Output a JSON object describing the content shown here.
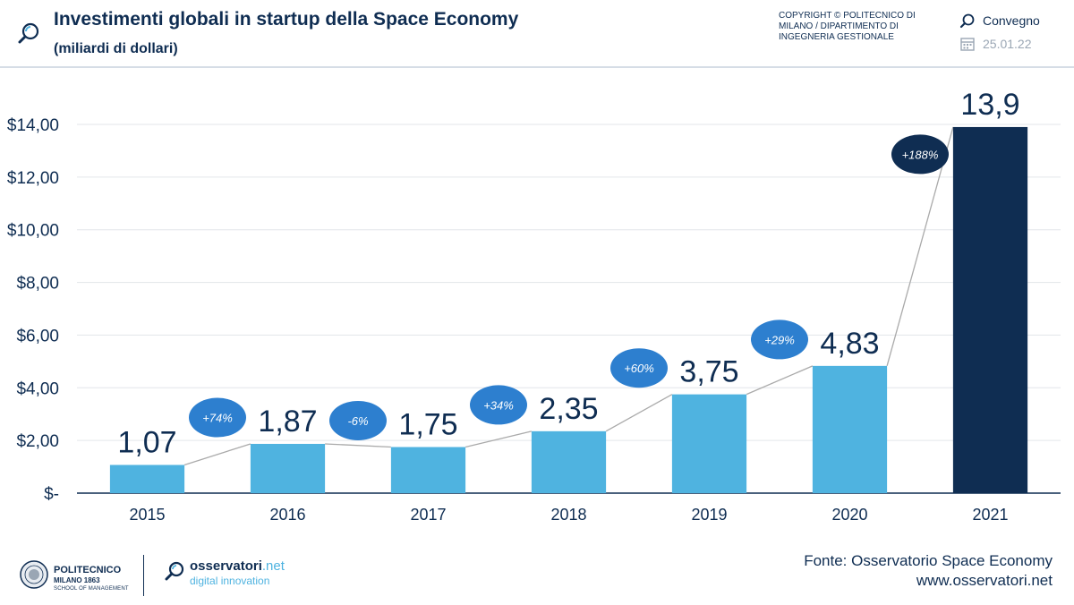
{
  "header": {
    "title": "Investimenti globali in startup della Space Economy",
    "subtitle": "(miliardi di dollari)",
    "copyright": "COPYRIGHT © POLITECNICO DI MILANO / DIPARTIMENTO DI INGEGNERIA GESTIONALE",
    "event_label": "Convegno",
    "date_label": "25.01.22",
    "icons": {
      "title": "magnifier-icon",
      "event": "magnifier-icon",
      "date": "calendar-icon"
    }
  },
  "chart_data": {
    "type": "bar",
    "title": "Investimenti globali in startup della Space Economy",
    "subtitle": "(miliardi di dollari)",
    "categories": [
      "2015",
      "2016",
      "2017",
      "2018",
      "2019",
      "2020",
      "2021"
    ],
    "values": [
      1.07,
      1.87,
      1.75,
      2.35,
      3.75,
      4.83,
      13.9
    ],
    "value_labels": [
      "1,07",
      "1,87",
      "1,75",
      "2,35",
      "3,75",
      "4,83",
      "13,9"
    ],
    "growth_labels": [
      "+74%",
      "-6%",
      "+34%",
      "+60%",
      "+29%",
      "+188%"
    ],
    "y_ticks": [
      0,
      2,
      4,
      6,
      8,
      10,
      12,
      14
    ],
    "y_tick_labels": [
      "$-",
      "$2,00",
      "$4,00",
      "$6,00",
      "$8,00",
      "$10,00",
      "$12,00",
      "$14,00"
    ],
    "ylim": [
      0,
      14
    ],
    "xlabel": "",
    "ylabel": "",
    "grid": true,
    "legend": "none",
    "trend_line": true,
    "colors": {
      "bar": "#4fb3e0",
      "highlight_bar": "#0f2d52",
      "growth_bubble": "#2d7fcf",
      "highlight_bubble": "#0f2d52",
      "gridline": "#e3e6ea",
      "trend_line": "#aaaaaa",
      "text": "#0f2d52"
    }
  },
  "footer": {
    "polimi_name": "POLITECNICO",
    "polimi_city": "MILANO 1863",
    "polimi_school": "SCHOOL OF MANAGEMENT",
    "osserv_name": "osservatori",
    "osserv_suffix": ".net",
    "osserv_tagline": "digital innovation",
    "source": "Fonte: Osservatorio Space Economy",
    "website": "www.osservatori.net"
  }
}
